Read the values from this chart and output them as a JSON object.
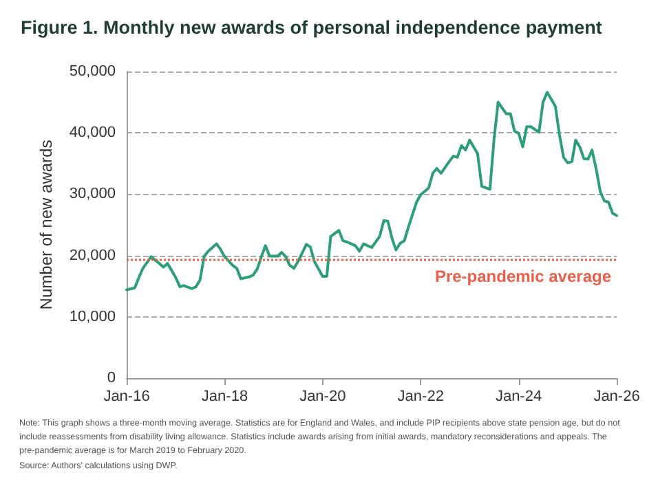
{
  "chart_data": {
    "type": "line",
    "title": "Figure 1. Monthly new awards of personal independence payment",
    "ylabel": "Number of new awards",
    "x": [
      "2016-01",
      "2016-03",
      "2016-04",
      "2016-05",
      "2016-07",
      "2016-09",
      "2016-10",
      "2016-11",
      "2017-01",
      "2017-02",
      "2017-03",
      "2017-05",
      "2017-06",
      "2017-07",
      "2017-08",
      "2017-09",
      "2017-11",
      "2017-12",
      "2018-01",
      "2018-03",
      "2018-04",
      "2018-05",
      "2018-07",
      "2018-08",
      "2018-09",
      "2018-10",
      "2018-11",
      "2018-12",
      "2019-02",
      "2019-03",
      "2019-04",
      "2019-05",
      "2019-06",
      "2019-07",
      "2019-09",
      "2019-10",
      "2019-11",
      "2020-01",
      "2020-02",
      "2020-03",
      "2020-05",
      "2020-06",
      "2020-07",
      "2020-09",
      "2020-10",
      "2020-11",
      "2020-12",
      "2021-01",
      "2021-03",
      "2021-04",
      "2021-05",
      "2021-06",
      "2021-07",
      "2021-08",
      "2021-09",
      "2021-10",
      "2021-12",
      "2022-01",
      "2022-03",
      "2022-04",
      "2022-05",
      "2022-06",
      "2022-08",
      "2022-09",
      "2022-10",
      "2022-11",
      "2022-12",
      "2023-01",
      "2023-03",
      "2023-04",
      "2023-06",
      "2023-07",
      "2023-08",
      "2023-10",
      "2023-11",
      "2023-12",
      "2024-01",
      "2024-02",
      "2024-03",
      "2024-04",
      "2024-06",
      "2024-07",
      "2024-08",
      "2024-10",
      "2024-11",
      "2024-12",
      "2025-01",
      "2025-02",
      "2025-03",
      "2025-04",
      "2025-05",
      "2025-06",
      "2025-07",
      "2025-08",
      "2025-09",
      "2025-10",
      "2025-11",
      "2025-12",
      "2026-01"
    ],
    "series": [
      {
        "color": "#2e9e74",
        "values": [
          14400,
          14700,
          16400,
          17900,
          19800,
          18700,
          18100,
          18700,
          16400,
          14900,
          15100,
          14600,
          14900,
          16000,
          19900,
          20700,
          21900,
          21000,
          19800,
          18400,
          17900,
          16200,
          16500,
          16800,
          17800,
          19800,
          21600,
          19900,
          19900,
          20500,
          19800,
          18400,
          17900,
          19000,
          21800,
          21400,
          19000,
          16600,
          16600,
          23100,
          24100,
          22400,
          22200,
          21600,
          20700,
          21900,
          21600,
          21300,
          23100,
          25700,
          25600,
          22800,
          20900,
          22000,
          22400,
          24600,
          28700,
          29900,
          31000,
          33400,
          34200,
          33400,
          35300,
          36200,
          36000,
          37900,
          37200,
          38800,
          36600,
          31300,
          30800,
          38800,
          45000,
          43100,
          43100,
          40300,
          39900,
          37700,
          41000,
          41000,
          40100,
          45000,
          46600,
          44300,
          39600,
          36000,
          35100,
          35300,
          38800,
          37700,
          35800,
          35700,
          37200,
          34100,
          30400,
          28900,
          28700,
          26900,
          26500
        ]
      }
    ],
    "xlim": [
      "2016-01",
      "2026-01"
    ],
    "xticks": [
      {
        "value": "2016-01",
        "label": "Jan-16"
      },
      {
        "value": "2018-01",
        "label": "Jan-18"
      },
      {
        "value": "2020-01",
        "label": "Jan-20"
      },
      {
        "value": "2022-01",
        "label": "Jan-22"
      },
      {
        "value": "2024-01",
        "label": "Jan-24"
      },
      {
        "value": "2026-01",
        "label": "Jan-26"
      }
    ],
    "ylim": [
      0,
      50000
    ],
    "yticks": [
      0,
      {
        "value": 10000,
        "label": "10,000"
      },
      {
        "value": 20000,
        "label": "20,000"
      },
      {
        "value": 30000,
        "label": "30,000"
      },
      {
        "value": 40000,
        "label": "40,000"
      },
      {
        "value": 50000,
        "label": "50,000"
      }
    ],
    "grid": "y",
    "marker": "none",
    "line_style": "solid",
    "ref_lines": [
      {
        "axis": "y",
        "value": 19300,
        "label": "Pre-pandemic average",
        "color": "#e8604c",
        "line_style": "dotted"
      }
    ],
    "annotations": [
      "Note: This graph shows a three-month moving average. Statistics are for England and Wales, and include PIP recipients above state pension age, but do not include reassessments from disability living allowance. Statistics include awards arising from initial awards, mandatory reconsiderations and appeals. The pre-pandemic average is for March 2019 to February 2020.",
      "Source: Authors' calculations using DWP."
    ]
  }
}
